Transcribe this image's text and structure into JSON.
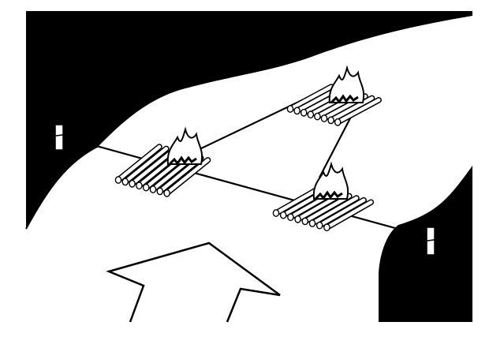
{
  "colors": {
    "ink": "#000000",
    "paper": "#ffffff"
  },
  "diagram": {
    "rafts": [
      {
        "id": "left",
        "logs": 8,
        "fire": true
      },
      {
        "id": "top",
        "logs": 8,
        "fire": true
      },
      {
        "id": "bottom",
        "logs": 8,
        "fire": true
      }
    ],
    "stakes": [
      {
        "id": "left-bank-stake"
      },
      {
        "id": "right-bank-stake"
      }
    ],
    "current_arrow": {
      "direction": "up",
      "icon": "large-up-arrow"
    }
  }
}
